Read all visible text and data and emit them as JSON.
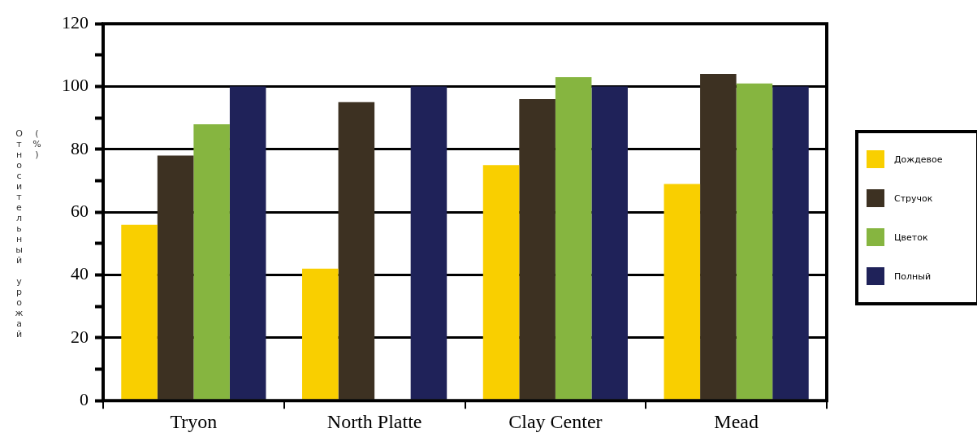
{
  "chart_data": {
    "type": "bar",
    "ylabel": "Относительный урожай (%)",
    "categories": [
      "Tryon",
      "North Platte",
      "Clay Center",
      "Mead"
    ],
    "series": [
      {
        "name": "Дождевое",
        "color": "#f9cf00",
        "values": [
          56,
          42,
          75,
          69
        ]
      },
      {
        "name": "Стручок",
        "color": "#3d3122",
        "values": [
          78,
          95,
          96,
          104
        ]
      },
      {
        "name": "Цветок",
        "color": "#86b540",
        "values": [
          88,
          null,
          103,
          101
        ]
      },
      {
        "name": "Полный",
        "color": "#1f2259",
        "values": [
          100,
          100,
          100,
          100
        ]
      }
    ],
    "ylim": [
      0,
      120
    ],
    "yticks": [
      0,
      {
        "value": 10,
        "label": null
      },
      20,
      {
        "value": 30,
        "label": null
      },
      40,
      {
        "value": 50,
        "label": null
      },
      60,
      {
        "value": 70,
        "label": null
      },
      80,
      {
        "value": 90,
        "label": null
      },
      100,
      {
        "value": 110,
        "label": null
      },
      120
    ],
    "grid": "y",
    "legend": "right"
  }
}
